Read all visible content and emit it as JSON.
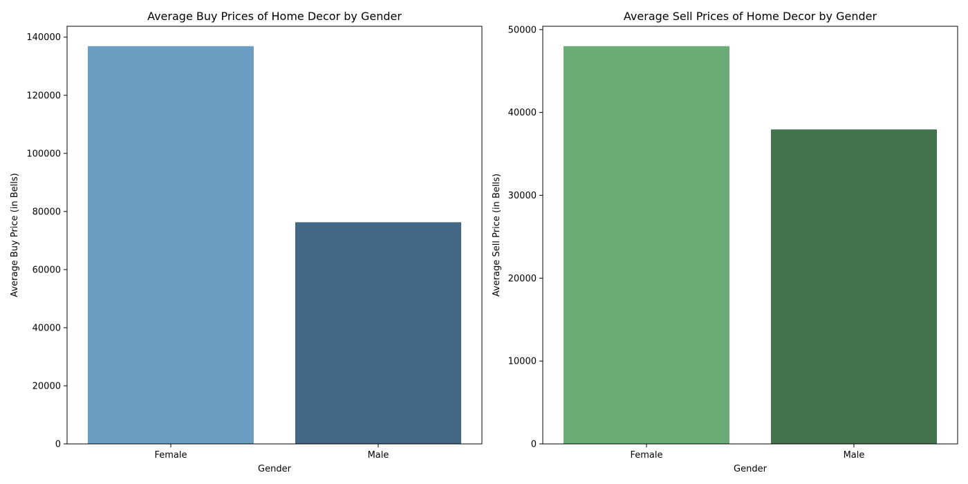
{
  "chart_data": [
    {
      "type": "bar",
      "title": "Average Buy Prices of Home Decor by Gender",
      "xlabel": "Gender",
      "ylabel": "Average Buy Price (in Bells)",
      "categories": [
        "Female",
        "Male"
      ],
      "values": [
        136900,
        76300
      ],
      "colors": [
        "#6b9dc1",
        "#426885"
      ],
      "ylim": [
        0,
        143745
      ],
      "yticks": [
        0,
        20000,
        40000,
        60000,
        80000,
        100000,
        120000,
        140000
      ],
      "grid": false,
      "legend": "none"
    },
    {
      "type": "bar",
      "title": "Average Sell Prices of Home Decor by Gender",
      "xlabel": "Gender",
      "ylabel": "Average Sell Price (in Bells)",
      "categories": [
        "Female",
        "Male"
      ],
      "values": [
        48000,
        37950
      ],
      "colors": [
        "#6aab76",
        "#41744d"
      ],
      "ylim": [
        0,
        50400
      ],
      "yticks": [
        0,
        10000,
        20000,
        30000,
        40000,
        50000
      ],
      "grid": false,
      "legend": "none"
    }
  ]
}
